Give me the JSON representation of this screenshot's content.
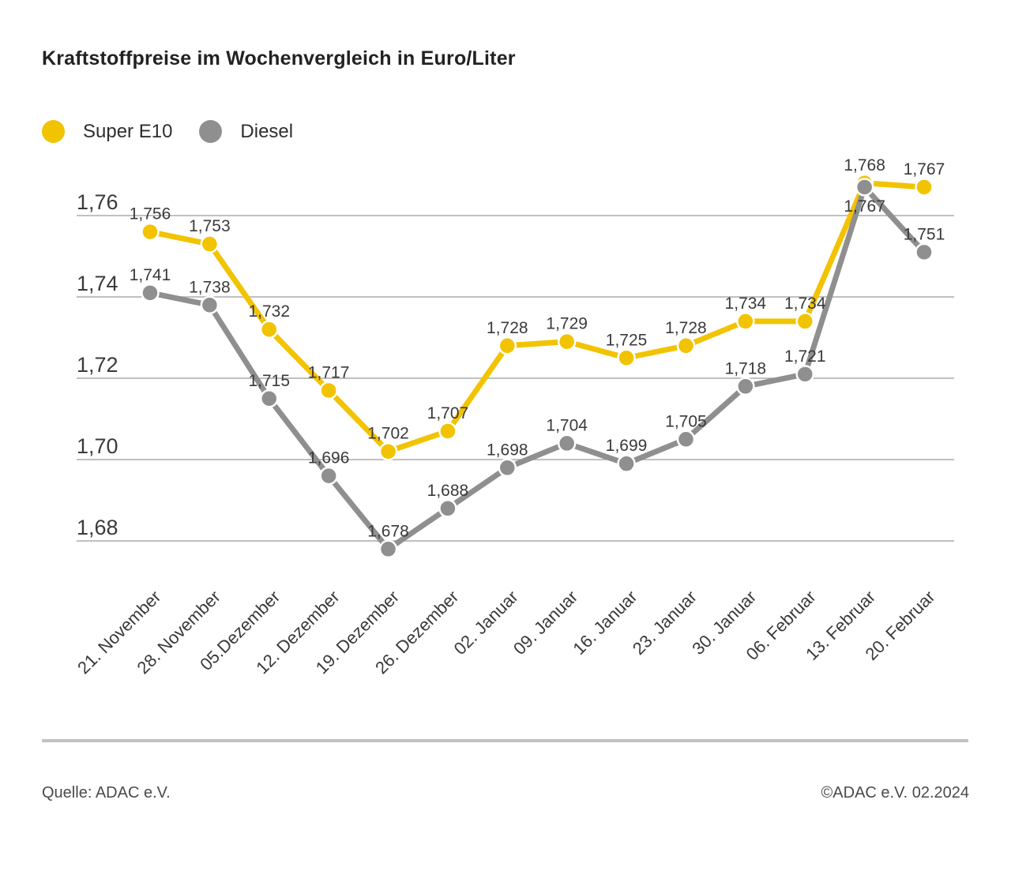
{
  "title": "Kraftstoffpreise im Wochenvergleich in Euro/Liter",
  "legend": [
    {
      "label": "Super E10",
      "color": "#F2C300"
    },
    {
      "label": "Diesel",
      "color": "#8F8F8F"
    }
  ],
  "footer": {
    "source": "Quelle: ADAC e.V.",
    "copyright": "©ADAC e.V. 02.2024"
  },
  "chart_data": {
    "type": "line",
    "title": "Kraftstoffpreise im Wochenvergleich in Euro/Liter",
    "unit": "Euro/Liter",
    "categories": [
      "21. November",
      "28. November",
      "05.Dezember",
      "12. Dezember",
      "19. Dezember",
      "26. Dezember",
      "02. Januar",
      "09. Januar",
      "16. Januar",
      "23. Januar",
      "30. Januar",
      "06. Februar",
      "13. Februar",
      "20. Februar"
    ],
    "series": [
      {
        "name": "Super E10",
        "color": "#F2C300",
        "values": [
          1.756,
          1.753,
          1.732,
          1.717,
          1.702,
          1.707,
          1.728,
          1.729,
          1.725,
          1.728,
          1.734,
          1.734,
          1.768,
          1.767
        ],
        "labels": [
          "1,756",
          "1,753",
          "1,732",
          "1,717",
          "1,702",
          "1,707",
          "1,728",
          "1,729",
          "1,725",
          "1,728",
          "1,734",
          "1,734",
          "1,768",
          "1,767"
        ],
        "label_below_indices": []
      },
      {
        "name": "Diesel",
        "color": "#8F8F8F",
        "values": [
          1.741,
          1.738,
          1.715,
          1.696,
          1.678,
          1.688,
          1.698,
          1.704,
          1.699,
          1.705,
          1.718,
          1.721,
          1.767,
          1.751
        ],
        "labels": [
          "1,741",
          "1,738",
          "1,715",
          "1,696",
          "1,678",
          "1,688",
          "1,698",
          "1,704",
          "1,699",
          "1,705",
          "1,718",
          "1,721",
          "1,767",
          "1,751"
        ],
        "label_below_indices": [
          12
        ]
      }
    ],
    "yticks": [
      {
        "label": "1,76",
        "value": 1.76
      },
      {
        "label": "1,74",
        "value": 1.74
      },
      {
        "label": "1,72",
        "value": 1.72
      },
      {
        "label": "1,70",
        "value": 1.7
      },
      {
        "label": "1,68",
        "value": 1.68
      }
    ],
    "ylim": [
      1.67,
      1.778
    ],
    "grid": true,
    "legend_position": "top-left",
    "text_color": "#3a3a3a",
    "grid_color": "#ababab"
  }
}
